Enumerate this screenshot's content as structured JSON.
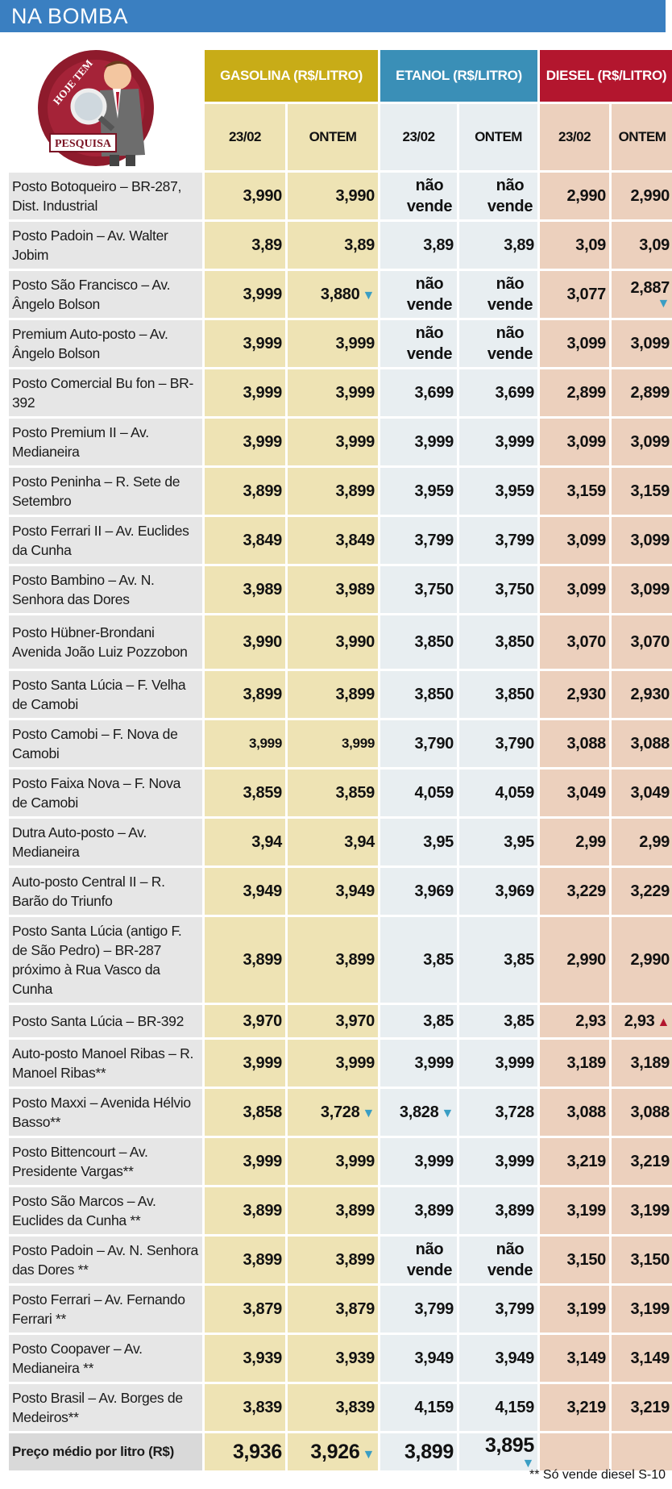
{
  "title": "NA BOMBA",
  "badge": {
    "top_text": "HOJE TEM",
    "bottom_text": "PESQUISA"
  },
  "header": {
    "fuels": [
      "GASOLINA (R$/LITRO)",
      "ETANOL (R$/LITRO)",
      "DIESEL (R$/LITRO)"
    ],
    "dates": [
      "23/02",
      "ONTEM",
      "23/02",
      "ONTEM",
      "23/02",
      "ONTEM"
    ]
  },
  "colors": {
    "gasolina": "#c8ac17",
    "etanol": "#3a8fb7",
    "diesel": "#b3162e",
    "title_bar": "#3a7fc1"
  },
  "rows": [
    {
      "name": "Posto Botoqueiro – BR-287, Dist. Industrial",
      "g1": "3,990",
      "g2": "3,990",
      "e1": "não vende",
      "e2": "não vende",
      "d1": "2,990",
      "d2": "2,990"
    },
    {
      "name": "Posto Padoin – Av. Walter Jobim",
      "g1": "3,89",
      "g2": "3,89",
      "e1": "3,89",
      "e2": "3,89",
      "d1": "3,09",
      "d2": "3,09"
    },
    {
      "name": "Posto São Francisco – Av. Ângelo Bolson",
      "g1": "3,999",
      "g2": "3,880",
      "g2_arrow": "down",
      "e1": "não vende",
      "e2": "não vende",
      "d1": "3,077",
      "d2": "2,887",
      "d2_arrow": "down-below"
    },
    {
      "name": "Premium Auto-posto – Av. Ângelo Bolson",
      "g1": "3,999",
      "g2": "3,999",
      "e1": "não vende",
      "e2": "não vende",
      "d1": "3,099",
      "d2": "3,099"
    },
    {
      "name": "Posto Comercial Bu fon – BR-392",
      "g1": "3,999",
      "g2": "3,999",
      "e1": "3,699",
      "e2": "3,699",
      "d1": "2,899",
      "d2": "2,899"
    },
    {
      "name": "Posto Premium II – Av. Medianeira",
      "g1": "3,999",
      "g2": "3,999",
      "e1": "3,999",
      "e2": "3,999",
      "d1": "3,099",
      "d2": "3,099"
    },
    {
      "name": "Posto Peninha – R. Sete de Setembro",
      "g1": "3,899",
      "g2": "3,899",
      "e1": "3,959",
      "e2": "3,959",
      "d1": "3,159",
      "d2": "3,159"
    },
    {
      "name": "Posto Ferrari II – Av. Euclides da Cunha",
      "g1": "3,849",
      "g2": "3,849",
      "e1": "3,799",
      "e2": "3,799",
      "d1": "3,099",
      "d2": "3,099"
    },
    {
      "name": "Posto Bambino – Av. N. Senhora das Dores",
      "g1": "3,989",
      "g2": "3,989",
      "e1": "3,750",
      "e2": "3,750",
      "d1": "3,099",
      "d2": "3,099"
    },
    {
      "name": "Posto Hübner-Brondani Avenida João Luiz Pozzobon",
      "g1": "3,990",
      "g2": "3,990",
      "e1": "3,850",
      "e2": "3,850",
      "d1": "3,070",
      "d2": "3,070"
    },
    {
      "name": "Posto Santa Lúcia – F. Velha de Camobi",
      "g1": "3,899",
      "g2": "3,899",
      "e1": "3,850",
      "e2": "3,850",
      "d1": "2,930",
      "d2": "2,930"
    },
    {
      "name": "Posto Camobi – F. Nova de Camobi",
      "g1": "3,999",
      "g2": "3,999",
      "g_small": true,
      "e1": "3,790",
      "e2": "3,790",
      "d1": "3,088",
      "d2": "3,088"
    },
    {
      "name": "Posto Faixa Nova – F. Nova de Camobi",
      "g1": "3,859",
      "g2": "3,859",
      "e1": "4,059",
      "e2": "4,059",
      "d1": "3,049",
      "d2": "3,049"
    },
    {
      "name": "Dutra Auto-posto – Av. Medianeira",
      "g1": "3,94",
      "g2": "3,94",
      "e1": "3,95",
      "e2": "3,95",
      "d1": "2,99",
      "d2": "2,99"
    },
    {
      "name": "Auto-posto Central II – R. Barão do Triunfo",
      "g1": "3,949",
      "g2": "3,949",
      "e1": "3,969",
      "e2": "3,969",
      "d1": "3,229",
      "d2": "3,229"
    },
    {
      "name": "Posto Santa Lúcia (antigo F. de São Pedro) – BR-287 próximo à Rua Vasco da Cunha",
      "g1": "3,899",
      "g2": "3,899",
      "e1": "3,85",
      "e2": "3,85",
      "d1": "2,990",
      "d2": "2,990"
    },
    {
      "name": "Posto Santa Lúcia – BR-392",
      "g1": "3,970",
      "g2": "3,970",
      "e1": "3,85",
      "e2": "3,85",
      "d1": "2,93",
      "d2": "2,93",
      "d2_arrow": "up"
    },
    {
      "name": "Auto-posto Manoel Ribas – R. Manoel Ribas**",
      "g1": "3,999",
      "g2": "3,999",
      "e1": "3,999",
      "e2": "3,999",
      "d1": "3,189",
      "d2": "3,189"
    },
    {
      "name": "Posto Maxxi – Avenida Hélvio Basso**",
      "g1": "3,858",
      "g2": "3,728",
      "g2_arrow": "down",
      "e1": "3,828",
      "e1_arrow": "down",
      "e2": "3,728",
      "d1": "3,088",
      "d2": "3,088"
    },
    {
      "name": "Posto Bittencourt – Av. Presidente Vargas**",
      "g1": "3,999",
      "g2": "3,999",
      "e1": "3,999",
      "e2": "3,999",
      "d1": "3,219",
      "d2": "3,219"
    },
    {
      "name": "Posto São Marcos – Av. Euclides da Cunha **",
      "g1": "3,899",
      "g2": "3,899",
      "e1": "3,899",
      "e2": "3,899",
      "d1": "3,199",
      "d2": "3,199"
    },
    {
      "name": "Posto Padoin – Av. N. Senhora das Dores **",
      "g1": "3,899",
      "g2": "3,899",
      "e1": "não vende",
      "e2": "não vende",
      "d1": "3,150",
      "d2": "3,150"
    },
    {
      "name": "Posto Ferrari – Av. Fernando Ferrari **",
      "g1": "3,879",
      "g2": "3,879",
      "e1": "3,799",
      "e2": "3,799",
      "d1": "3,199",
      "d2": "3,199"
    },
    {
      "name": "Posto Coopaver – Av. Medianeira **",
      "g1": "3,939",
      "g2": "3,939",
      "e1": "3,949",
      "e2": "3,949",
      "d1": "3,149",
      "d2": "3,149"
    },
    {
      "name": "Posto Brasil – Av. Borges de Medeiros**",
      "g1": "3,839",
      "g2": "3,839",
      "e1": "4,159",
      "e2": "4,159",
      "d1": "3,219",
      "d2": "3,219"
    }
  ],
  "average": {
    "label": "Preço médio por litro (R$)",
    "g1": "3,936",
    "g2": "3,926",
    "g2_arrow": "down",
    "e1": "3,899",
    "e2": "3,895",
    "e2_arrow": "down-below",
    "d1": "",
    "d2": ""
  },
  "footnote": "** Só vende diesel S-10"
}
